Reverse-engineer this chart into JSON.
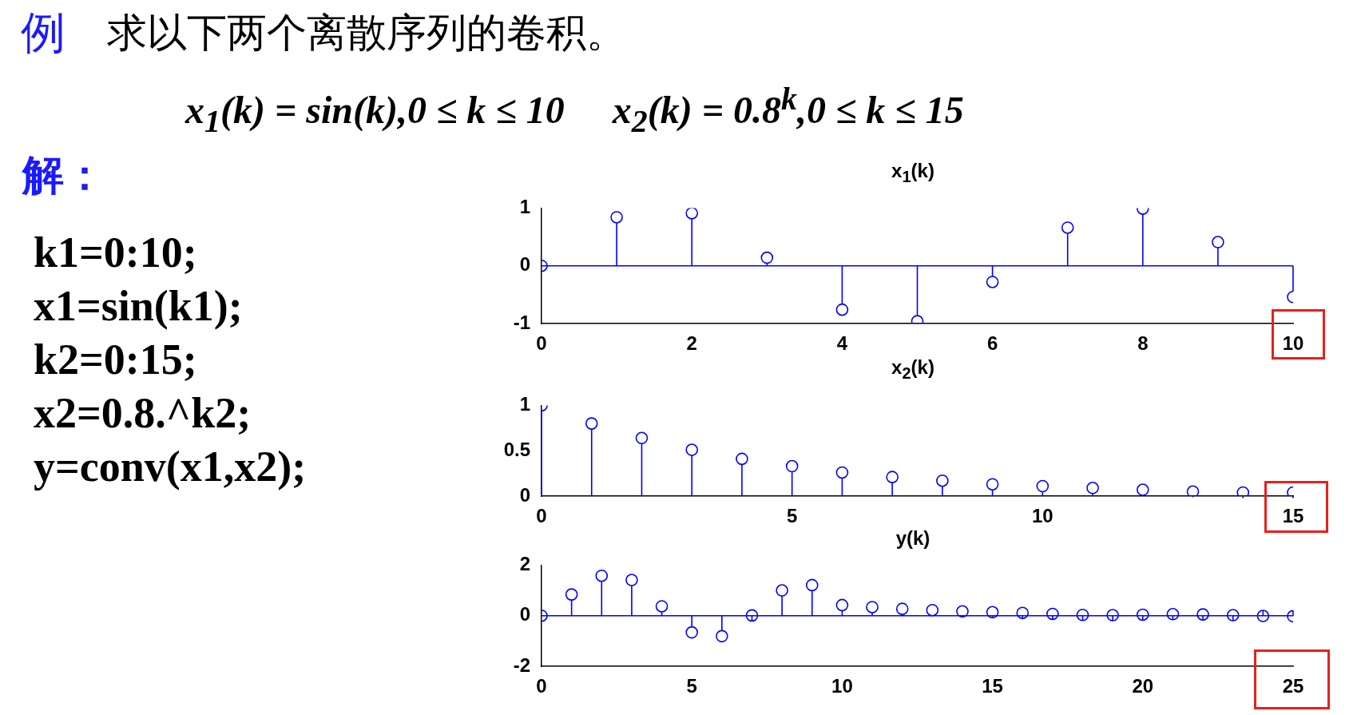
{
  "chart_data": [
    {
      "type": "other",
      "title": "求以下两个离散序列的卷积。",
      "annotations": [
        "例",
        "x$_{1}$(k) = sin(k),0 ≤ k ≤ 10     x$_{2}$(k) = 0.8$^{k}$,0 ≤ k ≤ 15",
        "解：",
        "k1=0:10;",
        "x1=sin(k1);",
        "k2=0:15;",
        "x2=0.8.^k2;",
        "y=conv(x1,x2);"
      ]
    },
    {
      "type": "lollipop",
      "title": "x$_{1}$(k)",
      "color": "#0000ff",
      "marker": "circle",
      "xlim": [
        0,
        10
      ],
      "xticks": [
        0,
        2,
        4,
        6,
        8,
        10
      ],
      "ylim": [
        -1,
        1
      ],
      "yticks": [
        -1,
        0,
        1
      ],
      "ref_lines": [
        {
          "axis": "y",
          "value": 0,
          "color": "#0000ff"
        }
      ],
      "x": [
        0,
        1,
        2,
        3,
        4,
        5,
        6,
        7,
        8,
        9,
        10
      ],
      "values": [
        0,
        0.84,
        0.91,
        0.14,
        -0.76,
        -0.96,
        -0.28,
        0.66,
        0.99,
        0.41,
        -0.54
      ]
    },
    {
      "type": "lollipop",
      "title": "x$_{2}$(k)",
      "color": "#0000ff",
      "marker": "circle",
      "xlim": [
        0,
        15
      ],
      "xticks": [
        0,
        5,
        10,
        15
      ],
      "ylim": [
        0,
        1
      ],
      "yticks": [
        0,
        0.5,
        1
      ],
      "x": [
        0,
        1,
        2,
        3,
        4,
        5,
        6,
        7,
        8,
        9,
        10,
        11,
        12,
        13,
        14,
        15
      ],
      "values": [
        1,
        0.8,
        0.64,
        0.51,
        0.41,
        0.33,
        0.26,
        0.21,
        0.17,
        0.13,
        0.11,
        0.09,
        0.07,
        0.05,
        0.04,
        0.04
      ]
    },
    {
      "type": "lollipop",
      "title": "y(k)",
      "color": "#0000ff",
      "marker": "circle",
      "xlim": [
        0,
        25
      ],
      "xticks": [
        0,
        5,
        10,
        15,
        20,
        25
      ],
      "ylim": [
        -2,
        2
      ],
      "yticks": [
        -2,
        0,
        2
      ],
      "ref_lines": [
        {
          "axis": "y",
          "value": 0,
          "color": "#0000ff"
        }
      ],
      "x": [
        0,
        1,
        2,
        3,
        4,
        5,
        6,
        7,
        8,
        9,
        10,
        11,
        12,
        13,
        14,
        15,
        16,
        17,
        18,
        19,
        20,
        21,
        22,
        23,
        24,
        25
      ],
      "values": [
        0,
        0.84,
        1.58,
        1.41,
        0.37,
        -0.66,
        -0.81,
        0.01,
        1,
        1.21,
        0.42,
        0.34,
        0.27,
        0.22,
        0.17,
        0.14,
        0.11,
        0.07,
        0.03,
        0.02,
        0.04,
        0.06,
        0.05,
        0.02,
        -0.01,
        -0.02
      ]
    }
  ]
}
